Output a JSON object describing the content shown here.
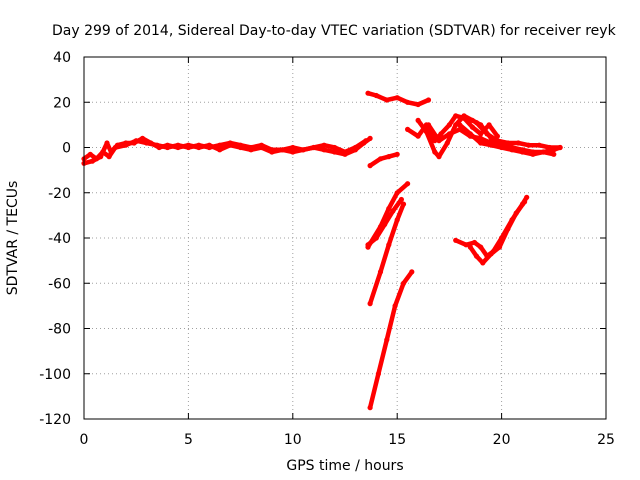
{
  "chart_data": {
    "type": "scatter",
    "title": "Day 299 of 2014, Sidereal Day-to-day VTEC variation (SDTVAR) for receiver reyk",
    "xlabel": "GPS time / hours",
    "ylabel": "SDTVAR / TECUs",
    "xlim": [
      0,
      25
    ],
    "ylim": [
      -120,
      40
    ],
    "xticks": [
      0,
      5,
      10,
      15,
      20,
      25
    ],
    "yticks": [
      -120,
      -100,
      -80,
      -60,
      -40,
      -20,
      0,
      20,
      40
    ],
    "grid": true,
    "legend": "none",
    "color": "#ff0000",
    "series": [
      {
        "name": "pre-midday band",
        "points": [
          [
            0,
            -5
          ],
          [
            0.3,
            -3
          ],
          [
            0.6,
            -5
          ],
          [
            0.9,
            -2
          ],
          [
            1.2,
            -4
          ],
          [
            1.5,
            0
          ],
          [
            2,
            1
          ],
          [
            2.5,
            3
          ],
          [
            3,
            2
          ],
          [
            3.5,
            1
          ],
          [
            4,
            0
          ],
          [
            4.5,
            1
          ],
          [
            5,
            0
          ],
          [
            5.5,
            1
          ],
          [
            6,
            0
          ],
          [
            6.5,
            1
          ],
          [
            7,
            2
          ],
          [
            7.5,
            1
          ],
          [
            8,
            0
          ],
          [
            8.5,
            1
          ],
          [
            9,
            -1
          ],
          [
            9.5,
            -1
          ],
          [
            10,
            0
          ],
          [
            10.5,
            -1
          ],
          [
            11,
            0
          ],
          [
            11.5,
            1
          ],
          [
            12,
            0
          ],
          [
            12.5,
            -2
          ],
          [
            13,
            0
          ],
          [
            13.5,
            3
          ]
        ]
      },
      {
        "name": "pre-midday lower",
        "points": [
          [
            0,
            -7
          ],
          [
            0.4,
            -6
          ],
          [
            0.8,
            -4
          ],
          [
            1.1,
            2
          ],
          [
            1.3,
            -2
          ],
          [
            1.6,
            1
          ],
          [
            2,
            2
          ],
          [
            2.4,
            2
          ],
          [
            2.8,
            4
          ],
          [
            3.2,
            2
          ],
          [
            3.6,
            0
          ],
          [
            4,
            1
          ],
          [
            4.5,
            0
          ],
          [
            5,
            1
          ],
          [
            5.5,
            0
          ],
          [
            6,
            1
          ],
          [
            6.5,
            -1
          ],
          [
            7,
            1
          ],
          [
            7.5,
            0
          ],
          [
            8,
            -1
          ],
          [
            8.5,
            0
          ],
          [
            9,
            -2
          ],
          [
            9.5,
            -1
          ],
          [
            10,
            -2
          ],
          [
            10.5,
            -1
          ],
          [
            11,
            0
          ],
          [
            11.5,
            -1
          ],
          [
            12,
            -2
          ],
          [
            12.5,
            -3
          ],
          [
            13,
            -1
          ],
          [
            13.4,
            2
          ],
          [
            13.7,
            4
          ]
        ]
      },
      {
        "name": "upper arc",
        "points": [
          [
            13.6,
            24
          ],
          [
            14,
            23
          ],
          [
            14.5,
            21
          ],
          [
            15,
            22
          ],
          [
            15.5,
            20
          ],
          [
            16,
            19
          ],
          [
            16.5,
            21
          ]
        ]
      },
      {
        "name": "short dip",
        "points": [
          [
            13.7,
            -8
          ],
          [
            14.2,
            -5
          ],
          [
            14.6,
            -4
          ],
          [
            15,
            -3
          ]
        ]
      },
      {
        "name": "steep track A",
        "points": [
          [
            13.6,
            -44
          ],
          [
            14.2,
            -35
          ],
          [
            14.6,
            -27
          ],
          [
            15,
            -20
          ],
          [
            15.5,
            -16
          ]
        ]
      },
      {
        "name": "steep track B",
        "points": [
          [
            13.6,
            -43
          ],
          [
            14,
            -40
          ],
          [
            14.4,
            -34
          ],
          [
            14.8,
            -28
          ],
          [
            15.2,
            -23
          ]
        ]
      },
      {
        "name": "steep track C",
        "points": [
          [
            13.7,
            -69
          ],
          [
            14.2,
            -55
          ],
          [
            14.6,
            -43
          ],
          [
            15,
            -32
          ],
          [
            15.3,
            -25
          ]
        ]
      },
      {
        "name": "steep track D",
        "points": [
          [
            13.7,
            -115
          ],
          [
            14.1,
            -100
          ],
          [
            14.5,
            -85
          ],
          [
            14.9,
            -70
          ],
          [
            15.3,
            -60
          ],
          [
            15.7,
            -55
          ]
        ]
      },
      {
        "name": "post-noon wave A",
        "points": [
          [
            15.5,
            8
          ],
          [
            16,
            5
          ],
          [
            16.4,
            10
          ],
          [
            16.8,
            3
          ],
          [
            17.1,
            6
          ],
          [
            17.5,
            10
          ],
          [
            17.8,
            14
          ],
          [
            18.2,
            13
          ],
          [
            18.6,
            9
          ],
          [
            19,
            6
          ],
          [
            19.4,
            10
          ],
          [
            19.8,
            5
          ]
        ]
      },
      {
        "name": "post-noon wave B",
        "points": [
          [
            16,
            12
          ],
          [
            16.4,
            7
          ],
          [
            16.8,
            -2
          ],
          [
            17,
            -4
          ],
          [
            17.4,
            2
          ],
          [
            17.8,
            10
          ],
          [
            18.2,
            14
          ],
          [
            18.6,
            12
          ],
          [
            19,
            10
          ],
          [
            19.5,
            4
          ],
          [
            20,
            2
          ]
        ]
      },
      {
        "name": "post-noon wave C",
        "points": [
          [
            16.5,
            10
          ],
          [
            17,
            3
          ],
          [
            17.5,
            6
          ],
          [
            18,
            8
          ],
          [
            18.5,
            5
          ],
          [
            19,
            4
          ],
          [
            19.5,
            2
          ],
          [
            20,
            1
          ],
          [
            20.5,
            0
          ],
          [
            21,
            -1
          ],
          [
            21.5,
            -2
          ],
          [
            22,
            -2
          ],
          [
            22.5,
            -1
          ],
          [
            22.8,
            0
          ]
        ]
      },
      {
        "name": "post-noon wave D",
        "points": [
          [
            18,
            10
          ],
          [
            18.5,
            6
          ],
          [
            19,
            2
          ],
          [
            19.5,
            1
          ],
          [
            20,
            0
          ],
          [
            20.5,
            -1
          ],
          [
            21,
            -2
          ],
          [
            21.5,
            -3
          ],
          [
            22,
            -2
          ],
          [
            22.5,
            -3
          ]
        ]
      },
      {
        "name": "post-noon wave E",
        "points": [
          [
            18.8,
            11
          ],
          [
            19.3,
            6
          ],
          [
            19.8,
            3
          ],
          [
            20.3,
            2
          ],
          [
            20.8,
            2
          ],
          [
            21.3,
            1
          ],
          [
            21.8,
            1
          ],
          [
            22.3,
            0
          ],
          [
            22.8,
            0
          ]
        ]
      },
      {
        "name": "late descent",
        "points": [
          [
            17.8,
            -41
          ],
          [
            18.3,
            -43
          ],
          [
            18.7,
            -42
          ],
          [
            19,
            -44
          ],
          [
            19.3,
            -48
          ],
          [
            19.6,
            -46
          ],
          [
            20,
            -40
          ],
          [
            20.5,
            -32
          ],
          [
            21,
            -25
          ],
          [
            21.2,
            -22
          ]
        ]
      },
      {
        "name": "late descent low",
        "points": [
          [
            18.5,
            -44
          ],
          [
            18.8,
            -48
          ],
          [
            19.1,
            -51
          ],
          [
            19.5,
            -47
          ],
          [
            19.9,
            -44
          ],
          [
            20.3,
            -36
          ],
          [
            20.7,
            -29
          ],
          [
            21.1,
            -24
          ]
        ]
      }
    ]
  }
}
